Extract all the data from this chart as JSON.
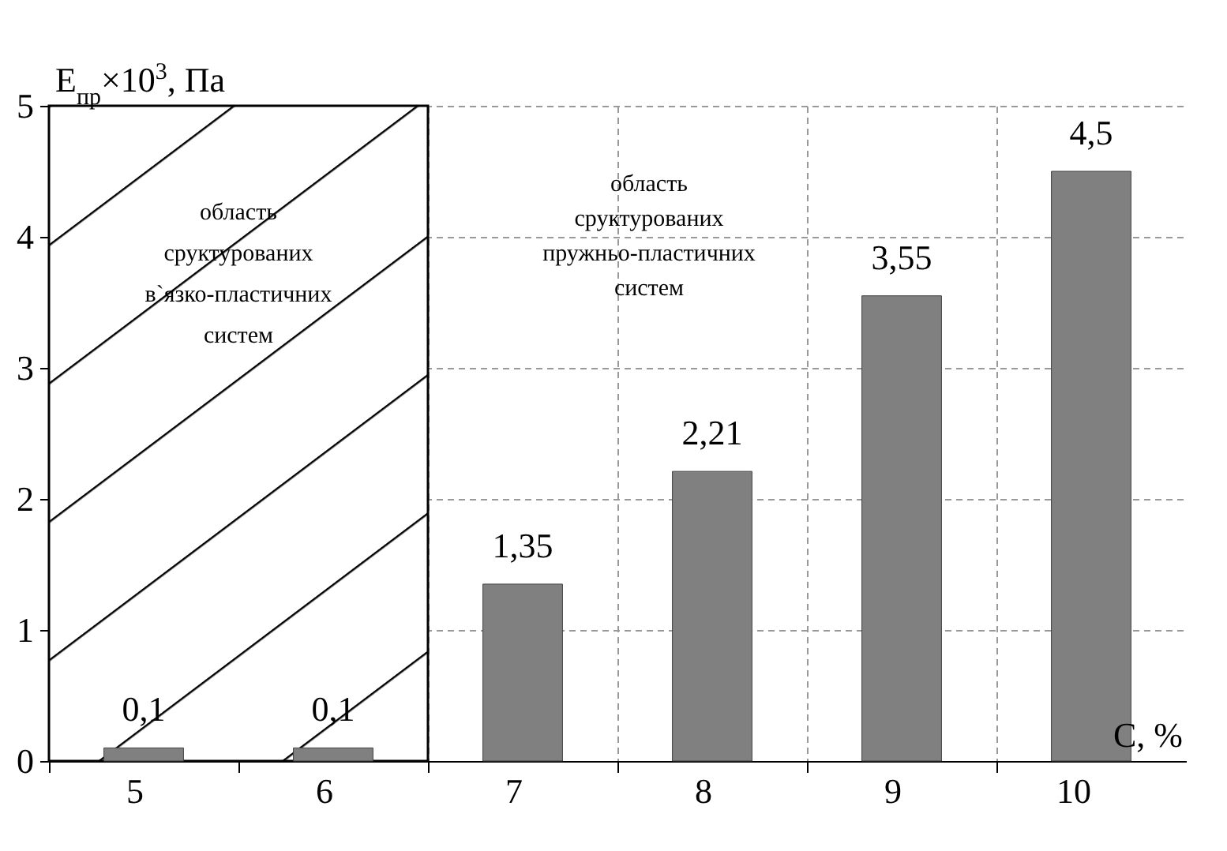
{
  "chart_data": {
    "type": "bar",
    "ylabel": "E$_{пр}$×10$^{3}$, Па",
    "xlabel": "C, %",
    "categories": [
      "5",
      "6",
      "7",
      "8",
      "9",
      "10"
    ],
    "values": [
      0.1,
      0.1,
      1.35,
      2.21,
      3.55,
      4.5
    ],
    "value_labels": [
      "0,1",
      "0,1",
      "1,35",
      "2,21",
      "3,55",
      "4,5"
    ],
    "color": "#808080",
    "ylim": [
      0,
      5
    ],
    "yticks": [
      0,
      1,
      2,
      3,
      4,
      5
    ],
    "grid": true,
    "bands": [
      {
        "axis": "x",
        "from": "5",
        "to": "6",
        "label": "область\nсруктурованих\nв`язко-пластичних\nсистем"
      }
    ],
    "annotations": [
      "область\nсруктурованих\nпружньо-пластичних\nсистем"
    ]
  }
}
